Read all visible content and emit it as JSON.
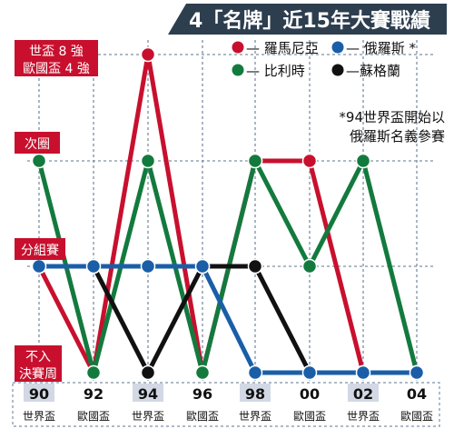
{
  "chart_data": {
    "type": "line",
    "title": "4「名牌」近15年大賽戰績",
    "note": [
      "*94世界盃開始以",
      "俄羅斯名義參賽"
    ],
    "y_levels": [
      "不入決賽周",
      "分組賽",
      "次圈",
      "世盃8強 歐國盃4強"
    ],
    "y_level_labels": [
      [
        "不入",
        "決賽周"
      ],
      [
        "分組賽"
      ],
      [
        "次圈"
      ],
      [
        "世盃 8 強",
        "歐國盃 4 強"
      ]
    ],
    "categories": [
      "90",
      "92",
      "94",
      "96",
      "98",
      "00",
      "02",
      "04"
    ],
    "tournaments": [
      "世界盃",
      "歐國盃",
      "世界盃",
      "歐國盃",
      "世界盃",
      "歐國盃",
      "世界盃",
      "歐國盃"
    ],
    "series": [
      {
        "name": "羅馬尼亞",
        "legend": "— 羅馬尼亞",
        "color": "#c8102e",
        "values": [
          1,
          0,
          3,
          0,
          2,
          2,
          0,
          0
        ]
      },
      {
        "name": "比利時",
        "legend": "— 比利時",
        "color": "#137a3e",
        "values": [
          2,
          0,
          2,
          0,
          2,
          1,
          2,
          0
        ]
      },
      {
        "name": "蘇格蘭",
        "legend": "—蘇格蘭",
        "color": "#111111",
        "values": [
          1,
          1,
          0,
          1,
          1,
          0,
          0,
          0
        ]
      },
      {
        "name": "俄羅斯",
        "legend": "— 俄羅斯 *",
        "color": "#1a5ea8",
        "values": [
          1,
          1,
          1,
          1,
          0,
          0,
          0,
          0
        ]
      }
    ],
    "colors": {
      "title_bg": "#2d3e4f",
      "label_bg": "#c8102e",
      "axis_tick_bg": "#d2d8e4",
      "grid": "#7d8fa5"
    }
  }
}
